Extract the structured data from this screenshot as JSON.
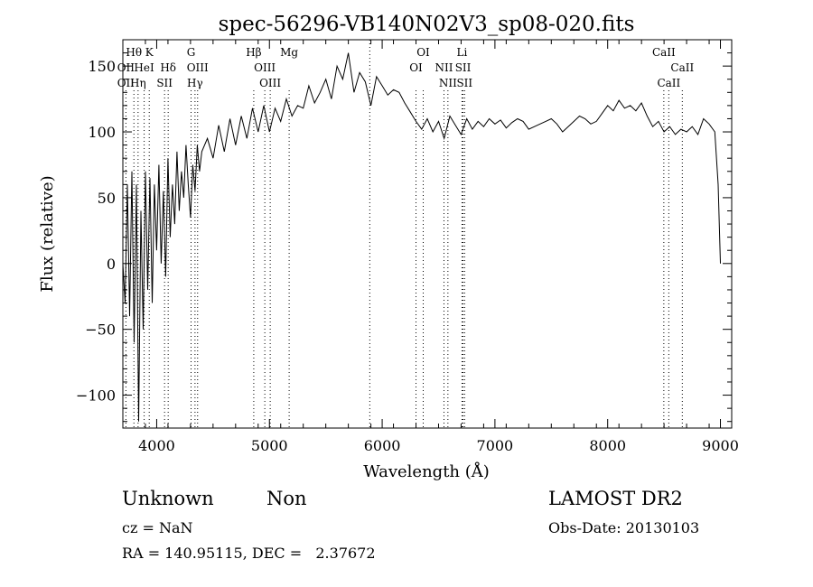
{
  "chart_data": {
    "type": "line",
    "title": "spec-56296-VB140N02V3_sp08-020.fits",
    "xlabel": "Wavelength (Å)",
    "ylabel": "Flux (relative)",
    "xlim": [
      3700,
      9100
    ],
    "ylim": [
      -125,
      170
    ],
    "x_ticks": [
      4000,
      5000,
      6000,
      7000,
      8000,
      9000
    ],
    "y_ticks": [
      -100,
      -50,
      0,
      50,
      100,
      150
    ],
    "grid": false,
    "series": [
      {
        "x": [
          3700,
          3720,
          3740,
          3760,
          3780,
          3800,
          3820,
          3840,
          3860,
          3880,
          3900,
          3920,
          3940,
          3960,
          3980,
          4000,
          4020,
          4040,
          4060,
          4080,
          4100,
          4120,
          4140,
          4160,
          4180,
          4200,
          4220,
          4240,
          4260,
          4280,
          4300,
          4320,
          4340,
          4360,
          4380,
          4400,
          4450,
          4500,
          4550,
          4600,
          4650,
          4700,
          4750,
          4800,
          4850,
          4900,
          4950,
          5000,
          5050,
          5100,
          5150,
          5200,
          5250,
          5300,
          5350,
          5400,
          5450,
          5500,
          5550,
          5600,
          5650,
          5700,
          5750,
          5800,
          5850,
          5900,
          5950,
          6000,
          6050,
          6100,
          6150,
          6200,
          6250,
          6300,
          6350,
          6400,
          6450,
          6500,
          6550,
          6600,
          6650,
          6700,
          6750,
          6800,
          6850,
          6900,
          6950,
          7000,
          7050,
          7100,
          7150,
          7200,
          7250,
          7300,
          7350,
          7400,
          7450,
          7500,
          7550,
          7600,
          7650,
          7700,
          7750,
          7800,
          7850,
          7900,
          7950,
          8000,
          8050,
          8100,
          8150,
          8200,
          8250,
          8300,
          8350,
          8400,
          8450,
          8500,
          8550,
          8600,
          8650,
          8700,
          8750,
          8800,
          8850,
          8900,
          8950,
          8980,
          9000
        ],
        "y": [
          0,
          -30,
          60,
          -40,
          70,
          -60,
          60,
          -120,
          40,
          -50,
          70,
          -20,
          65,
          -30,
          60,
          10,
          75,
          0,
          55,
          -10,
          80,
          20,
          60,
          30,
          85,
          40,
          70,
          50,
          90,
          60,
          35,
          75,
          55,
          90,
          70,
          85,
          95,
          80,
          105,
          85,
          110,
          90,
          112,
          95,
          118,
          100,
          120,
          100,
          118,
          108,
          125,
          112,
          120,
          118,
          135,
          122,
          130,
          140,
          125,
          150,
          140,
          160,
          130,
          145,
          138,
          120,
          142,
          135,
          128,
          132,
          130,
          122,
          115,
          108,
          102,
          110,
          100,
          108,
          95,
          112,
          105,
          98,
          110,
          102,
          108,
          104,
          110,
          106,
          109,
          103,
          107,
          110,
          108,
          102,
          104,
          106,
          108,
          110,
          106,
          100,
          104,
          108,
          112,
          110,
          106,
          108,
          114,
          120,
          116,
          124,
          118,
          120,
          116,
          122,
          112,
          104,
          108,
          100,
          104,
          98,
          102,
          100,
          104,
          98,
          110,
          106,
          100,
          60,
          0
        ]
      }
    ],
    "line_markers": [
      {
        "label": "Hθ",
        "row": 1,
        "x": 3798
      },
      {
        "label": "K",
        "row": 1,
        "x": 3934
      },
      {
        "label": "G",
        "row": 1,
        "x": 4305
      },
      {
        "label": "Hβ",
        "row": 1,
        "x": 4861
      },
      {
        "label": "Mg",
        "row": 1,
        "x": 5175
      },
      {
        "label": "OI",
        "row": 1,
        "x": 6364
      },
      {
        "label": "Li",
        "row": 1,
        "x": 6708
      },
      {
        "label": "CaII",
        "row": 1,
        "x": 8498
      },
      {
        "label": "OII",
        "row": 2,
        "x": 3727
      },
      {
        "label": "HeI",
        "row": 2,
        "x": 3889
      },
      {
        "label": "Hδ",
        "row": 2,
        "x": 4102
      },
      {
        "label": "OIII",
        "row": 2,
        "x": 4363
      },
      {
        "label": "OIII",
        "row": 2,
        "x": 4959
      },
      {
        "label": "OI",
        "row": 2,
        "x": 6300
      },
      {
        "label": "NII",
        "row": 2,
        "x": 6548
      },
      {
        "label": "SII",
        "row": 2,
        "x": 6717
      },
      {
        "label": "CaII",
        "row": 2,
        "x": 8662
      },
      {
        "label": "OII",
        "row": 3,
        "x": 3727
      },
      {
        "label": "Hη",
        "row": 3,
        "x": 3835
      },
      {
        "label": "SII",
        "row": 3,
        "x": 4070
      },
      {
        "label": "Hγ",
        "row": 3,
        "x": 4340
      },
      {
        "label": "OIII",
        "row": 3,
        "x": 5007
      },
      {
        "label": "NII",
        "row": 3,
        "x": 6583
      },
      {
        "label": "SII",
        "row": 3,
        "x": 6731
      },
      {
        "label": "CaII",
        "row": 3,
        "x": 8542
      },
      {
        "label": "",
        "row": 0,
        "x": 5890
      }
    ]
  },
  "info": {
    "class": "Unknown",
    "subclass": "Non",
    "survey": "LAMOST DR2",
    "cz": "cz = NaN",
    "obs_date": "Obs-Date: 20130103",
    "coords": "RA = 140.95115, DEC =   2.37672"
  }
}
